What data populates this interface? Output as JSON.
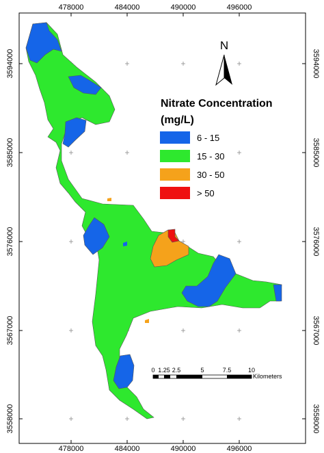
{
  "axes": {
    "x_ticks": [
      "478000",
      "484000",
      "490000",
      "496000"
    ],
    "y_ticks": [
      "3594000",
      "3585000",
      "3576000",
      "3567000",
      "3558000"
    ]
  },
  "north_arrow": {
    "label": "N",
    "icon": "north-arrow-icon"
  },
  "legend": {
    "title_line1": "Nitrate Concentration",
    "title_line2": "(mg/L)",
    "classes": [
      {
        "label": "6 - 15",
        "color": "#1565e8"
      },
      {
        "label": "15 - 30",
        "color": "#2ee82e"
      },
      {
        "label": "30 - 50",
        "color": "#f5a21b"
      },
      {
        "label": "> 50",
        "color": "#ef1010"
      }
    ]
  },
  "scale_bar": {
    "ticks": [
      "0",
      "1.25",
      "2.5",
      "5",
      "7.5",
      "10"
    ],
    "unit": "Kilometers"
  },
  "colors": {
    "class_6_15": "#1565e8",
    "class_15_30": "#2ee82e",
    "class_30_50": "#f5a21b",
    "class_gt_50": "#ef1010",
    "frame": "#000000",
    "outline": "#555555"
  }
}
